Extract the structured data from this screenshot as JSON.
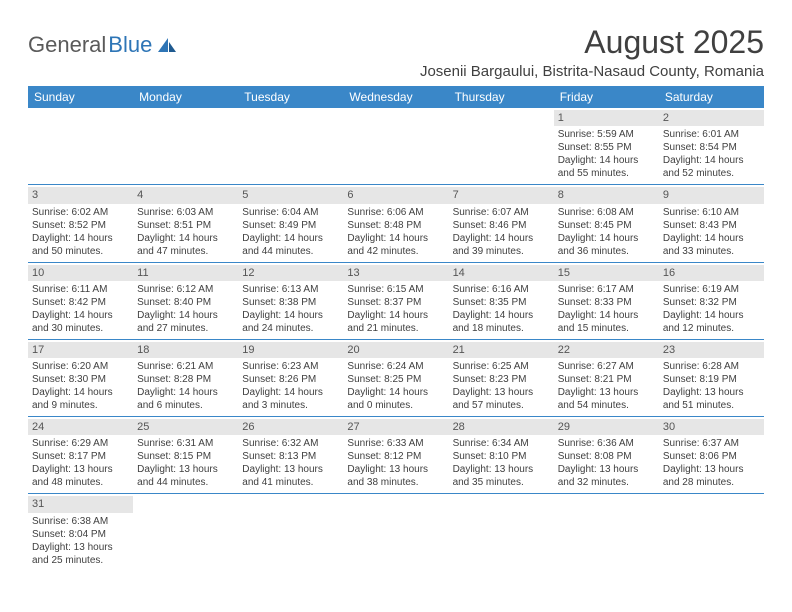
{
  "logo": {
    "text1": "General",
    "text2": "Blue"
  },
  "title": "August 2025",
  "location": "Josenii Bargaului, Bistrita-Nasaud County, Romania",
  "colors": {
    "header_bg": "#3a87c8",
    "header_text": "#ffffff",
    "daynum_bg": "#e6e6e6",
    "border": "#3a87c8",
    "text": "#404040",
    "logo_gray": "#5a5a5a",
    "logo_blue": "#2e75b6"
  },
  "weekdays": [
    "Sunday",
    "Monday",
    "Tuesday",
    "Wednesday",
    "Thursday",
    "Friday",
    "Saturday"
  ],
  "weeks": [
    [
      {
        "empty": true
      },
      {
        "empty": true
      },
      {
        "empty": true
      },
      {
        "empty": true
      },
      {
        "empty": true
      },
      {
        "day": "1",
        "sunrise": "Sunrise: 5:59 AM",
        "sunset": "Sunset: 8:55 PM",
        "dl1": "Daylight: 14 hours",
        "dl2": "and 55 minutes."
      },
      {
        "day": "2",
        "sunrise": "Sunrise: 6:01 AM",
        "sunset": "Sunset: 8:54 PM",
        "dl1": "Daylight: 14 hours",
        "dl2": "and 52 minutes."
      }
    ],
    [
      {
        "day": "3",
        "sunrise": "Sunrise: 6:02 AM",
        "sunset": "Sunset: 8:52 PM",
        "dl1": "Daylight: 14 hours",
        "dl2": "and 50 minutes."
      },
      {
        "day": "4",
        "sunrise": "Sunrise: 6:03 AM",
        "sunset": "Sunset: 8:51 PM",
        "dl1": "Daylight: 14 hours",
        "dl2": "and 47 minutes."
      },
      {
        "day": "5",
        "sunrise": "Sunrise: 6:04 AM",
        "sunset": "Sunset: 8:49 PM",
        "dl1": "Daylight: 14 hours",
        "dl2": "and 44 minutes."
      },
      {
        "day": "6",
        "sunrise": "Sunrise: 6:06 AM",
        "sunset": "Sunset: 8:48 PM",
        "dl1": "Daylight: 14 hours",
        "dl2": "and 42 minutes."
      },
      {
        "day": "7",
        "sunrise": "Sunrise: 6:07 AM",
        "sunset": "Sunset: 8:46 PM",
        "dl1": "Daylight: 14 hours",
        "dl2": "and 39 minutes."
      },
      {
        "day": "8",
        "sunrise": "Sunrise: 6:08 AM",
        "sunset": "Sunset: 8:45 PM",
        "dl1": "Daylight: 14 hours",
        "dl2": "and 36 minutes."
      },
      {
        "day": "9",
        "sunrise": "Sunrise: 6:10 AM",
        "sunset": "Sunset: 8:43 PM",
        "dl1": "Daylight: 14 hours",
        "dl2": "and 33 minutes."
      }
    ],
    [
      {
        "day": "10",
        "sunrise": "Sunrise: 6:11 AM",
        "sunset": "Sunset: 8:42 PM",
        "dl1": "Daylight: 14 hours",
        "dl2": "and 30 minutes."
      },
      {
        "day": "11",
        "sunrise": "Sunrise: 6:12 AM",
        "sunset": "Sunset: 8:40 PM",
        "dl1": "Daylight: 14 hours",
        "dl2": "and 27 minutes."
      },
      {
        "day": "12",
        "sunrise": "Sunrise: 6:13 AM",
        "sunset": "Sunset: 8:38 PM",
        "dl1": "Daylight: 14 hours",
        "dl2": "and 24 minutes."
      },
      {
        "day": "13",
        "sunrise": "Sunrise: 6:15 AM",
        "sunset": "Sunset: 8:37 PM",
        "dl1": "Daylight: 14 hours",
        "dl2": "and 21 minutes."
      },
      {
        "day": "14",
        "sunrise": "Sunrise: 6:16 AM",
        "sunset": "Sunset: 8:35 PM",
        "dl1": "Daylight: 14 hours",
        "dl2": "and 18 minutes."
      },
      {
        "day": "15",
        "sunrise": "Sunrise: 6:17 AM",
        "sunset": "Sunset: 8:33 PM",
        "dl1": "Daylight: 14 hours",
        "dl2": "and 15 minutes."
      },
      {
        "day": "16",
        "sunrise": "Sunrise: 6:19 AM",
        "sunset": "Sunset: 8:32 PM",
        "dl1": "Daylight: 14 hours",
        "dl2": "and 12 minutes."
      }
    ],
    [
      {
        "day": "17",
        "sunrise": "Sunrise: 6:20 AM",
        "sunset": "Sunset: 8:30 PM",
        "dl1": "Daylight: 14 hours",
        "dl2": "and 9 minutes."
      },
      {
        "day": "18",
        "sunrise": "Sunrise: 6:21 AM",
        "sunset": "Sunset: 8:28 PM",
        "dl1": "Daylight: 14 hours",
        "dl2": "and 6 minutes."
      },
      {
        "day": "19",
        "sunrise": "Sunrise: 6:23 AM",
        "sunset": "Sunset: 8:26 PM",
        "dl1": "Daylight: 14 hours",
        "dl2": "and 3 minutes."
      },
      {
        "day": "20",
        "sunrise": "Sunrise: 6:24 AM",
        "sunset": "Sunset: 8:25 PM",
        "dl1": "Daylight: 14 hours",
        "dl2": "and 0 minutes."
      },
      {
        "day": "21",
        "sunrise": "Sunrise: 6:25 AM",
        "sunset": "Sunset: 8:23 PM",
        "dl1": "Daylight: 13 hours",
        "dl2": "and 57 minutes."
      },
      {
        "day": "22",
        "sunrise": "Sunrise: 6:27 AM",
        "sunset": "Sunset: 8:21 PM",
        "dl1": "Daylight: 13 hours",
        "dl2": "and 54 minutes."
      },
      {
        "day": "23",
        "sunrise": "Sunrise: 6:28 AM",
        "sunset": "Sunset: 8:19 PM",
        "dl1": "Daylight: 13 hours",
        "dl2": "and 51 minutes."
      }
    ],
    [
      {
        "day": "24",
        "sunrise": "Sunrise: 6:29 AM",
        "sunset": "Sunset: 8:17 PM",
        "dl1": "Daylight: 13 hours",
        "dl2": "and 48 minutes."
      },
      {
        "day": "25",
        "sunrise": "Sunrise: 6:31 AM",
        "sunset": "Sunset: 8:15 PM",
        "dl1": "Daylight: 13 hours",
        "dl2": "and 44 minutes."
      },
      {
        "day": "26",
        "sunrise": "Sunrise: 6:32 AM",
        "sunset": "Sunset: 8:13 PM",
        "dl1": "Daylight: 13 hours",
        "dl2": "and 41 minutes."
      },
      {
        "day": "27",
        "sunrise": "Sunrise: 6:33 AM",
        "sunset": "Sunset: 8:12 PM",
        "dl1": "Daylight: 13 hours",
        "dl2": "and 38 minutes."
      },
      {
        "day": "28",
        "sunrise": "Sunrise: 6:34 AM",
        "sunset": "Sunset: 8:10 PM",
        "dl1": "Daylight: 13 hours",
        "dl2": "and 35 minutes."
      },
      {
        "day": "29",
        "sunrise": "Sunrise: 6:36 AM",
        "sunset": "Sunset: 8:08 PM",
        "dl1": "Daylight: 13 hours",
        "dl2": "and 32 minutes."
      },
      {
        "day": "30",
        "sunrise": "Sunrise: 6:37 AM",
        "sunset": "Sunset: 8:06 PM",
        "dl1": "Daylight: 13 hours",
        "dl2": "and 28 minutes."
      }
    ],
    [
      {
        "day": "31",
        "sunrise": "Sunrise: 6:38 AM",
        "sunset": "Sunset: 8:04 PM",
        "dl1": "Daylight: 13 hours",
        "dl2": "and 25 minutes."
      },
      {
        "empty": true
      },
      {
        "empty": true
      },
      {
        "empty": true
      },
      {
        "empty": true
      },
      {
        "empty": true
      },
      {
        "empty": true
      }
    ]
  ]
}
